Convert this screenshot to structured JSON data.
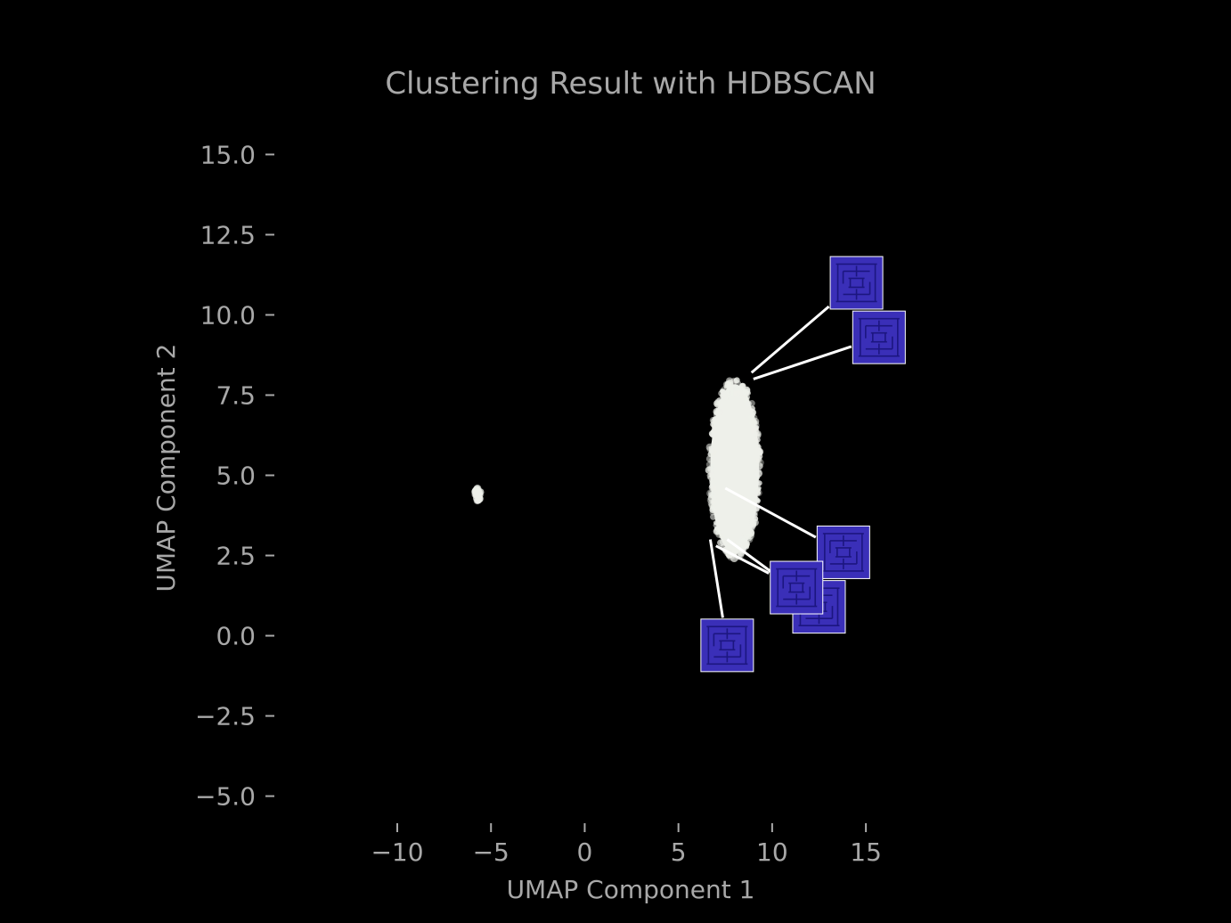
{
  "chart_data": {
    "type": "scatter",
    "title": "Clustering Result with HDBSCAN",
    "xlabel": "UMAP Component 1",
    "ylabel": "UMAP Component 2",
    "xlim": [
      -14.8,
      19.7
    ],
    "ylim": [
      -5.9,
      15.9
    ],
    "xticks": [
      -10,
      -5,
      0,
      5,
      10,
      15
    ],
    "xtick_labels": [
      "−10",
      "−5",
      "0",
      "5",
      "10",
      "15"
    ],
    "yticks": [
      15.0,
      12.5,
      10.0,
      7.5,
      5.0,
      2.5,
      0.0,
      -2.5,
      -5.0
    ],
    "ytick_labels": [
      "15.0",
      "12.5",
      "10.0",
      "7.5",
      "5.0",
      "2.5",
      "0.0",
      "−2.5",
      "−5.0"
    ],
    "grid": false,
    "series": [
      {
        "cluster": "main",
        "center": [
          8.0,
          5.2
        ],
        "spread": [
          2.7,
          5.5
        ],
        "color": "#eef0ea"
      },
      {
        "cluster": "small",
        "center": [
          -5.7,
          4.4
        ],
        "spread": [
          0.3,
          0.4
        ],
        "color": "#eef0ea"
      }
    ],
    "thumbnail_annotations": [
      {
        "point": [
          8.9,
          8.2
        ],
        "image_center": [
          14.5,
          11.0
        ]
      },
      {
        "point": [
          9.0,
          8.0
        ],
        "image_center": [
          15.7,
          9.3
        ]
      },
      {
        "point": [
          7.5,
          4.6
        ],
        "image_center": [
          13.8,
          2.6
        ]
      },
      {
        "point": [
          7.6,
          3.0
        ],
        "image_center": [
          12.5,
          0.9
        ]
      },
      {
        "point": [
          7.0,
          2.8
        ],
        "image_center": [
          11.3,
          1.5
        ]
      },
      {
        "point": [
          6.7,
          3.0
        ],
        "image_center": [
          7.6,
          -0.3
        ]
      }
    ],
    "colors": {
      "background": "#000000",
      "text": "#a8a8a8",
      "thumbnail_fill": "#3a2fb8",
      "thumbnail_maze": "#1c1680",
      "leader_line": "#ffffff"
    }
  }
}
